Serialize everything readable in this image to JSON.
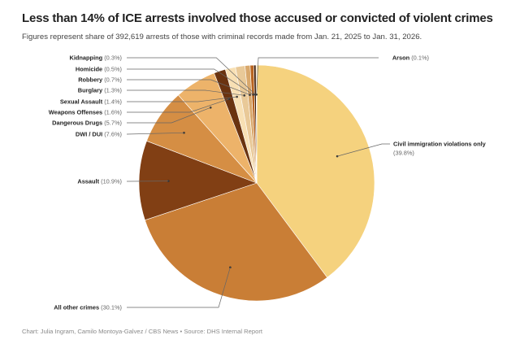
{
  "header": {
    "title": "Less than 14% of ICE arrests involved those accused or convicted of violent crimes",
    "subtitle": "Figures represent share of 392,619 arrests of those with criminal records made from Jan. 21, 2025 to Jan. 31, 2026."
  },
  "footer": {
    "credit": "Chart: Julia Ingram, Camilo Montoya-Galvez / CBS News • Source: DHS Internal Report"
  },
  "chart_data": {
    "type": "pie",
    "title": "Less than 14% of ICE arrests involved those accused or convicted of violent crimes",
    "subtitle": "Figures represent share of 392,619 arrests of those with criminal records made from Jan. 21, 2025 to Jan. 31, 2026.",
    "unit": "%",
    "direction": "clockwise from top",
    "slices": [
      {
        "label": "Civil immigration violations only",
        "value": 39.8,
        "display": "(39.8%)",
        "color": "#F5D27E"
      },
      {
        "label": "All other crimes",
        "value": 30.1,
        "display": "(30.1%)",
        "color": "#C97E36"
      },
      {
        "label": "Assault",
        "value": 10.9,
        "display": "(10.9%)",
        "color": "#813F14"
      },
      {
        "label": "DWI / DUI",
        "value": 7.6,
        "display": "(7.6%)",
        "color": "#D58E44"
      },
      {
        "label": "Dangerous Drugs",
        "value": 5.7,
        "display": "(5.7%)",
        "color": "#EDB36A"
      },
      {
        "label": "Weapons Offenses",
        "value": 1.6,
        "display": "(1.6%)",
        "color": "#6A3310"
      },
      {
        "label": "Sexual Assault",
        "value": 1.4,
        "display": "(1.4%)",
        "color": "#F8E0B4"
      },
      {
        "label": "Burglary",
        "value": 1.3,
        "display": "(1.3%)",
        "color": "#E9C998"
      },
      {
        "label": "Robbery",
        "value": 0.7,
        "display": "(0.7%)",
        "color": "#D9A86C"
      },
      {
        "label": "Homicide",
        "value": 0.5,
        "display": "(0.5%)",
        "color": "#B86420"
      },
      {
        "label": "Kidnapping",
        "value": 0.3,
        "display": "(0.3%)",
        "color": "#3A1A08"
      },
      {
        "label": "Arson",
        "value": 0.1,
        "display": "(0.1%)",
        "color": "#E8B880"
      }
    ],
    "legend": "direct labels with leader lines"
  }
}
